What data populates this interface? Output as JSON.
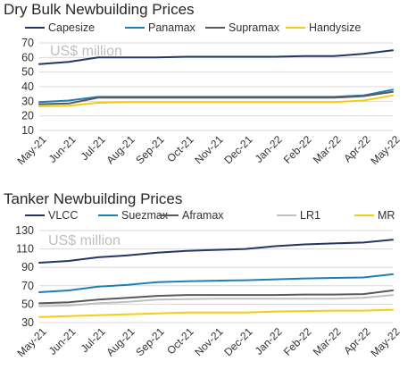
{
  "chart_data": [
    {
      "type": "line",
      "title": "Dry Bulk Newbuilding Prices",
      "annotation": "US$ million",
      "x": [
        "May-21",
        "Jun-21",
        "Jul-21",
        "Aug-21",
        "Sep-21",
        "Oct-21",
        "Nov-21",
        "Dec-21",
        "Jan-22",
        "Feb-22",
        "Mar-22",
        "Apr-22",
        "May-22"
      ],
      "ylim": [
        10,
        70
      ],
      "yticks": [
        10,
        20,
        30,
        40,
        50,
        60,
        70
      ],
      "grid": true,
      "legend_position": "top",
      "series": [
        {
          "name": "Capesize",
          "color": "#1f3864",
          "values": [
            55.5,
            57,
            60,
            60,
            60,
            60.5,
            60.5,
            60.5,
            60.5,
            61,
            61,
            62.5,
            65
          ]
        },
        {
          "name": "Panamax",
          "color": "#1f7fb5",
          "values": [
            29.5,
            30.5,
            33,
            33,
            33,
            33,
            33,
            33,
            33,
            33,
            33,
            34,
            38
          ]
        },
        {
          "name": "Supramax",
          "color": "#595959",
          "values": [
            28,
            28.5,
            32.5,
            32.5,
            32.5,
            32.5,
            32.5,
            32.5,
            32.5,
            32.5,
            32.5,
            33.5,
            36.5
          ]
        },
        {
          "name": "Handysize",
          "color": "#f5cc14",
          "values": [
            26.5,
            27,
            29,
            29.5,
            29.5,
            29.5,
            29.5,
            29.5,
            29.5,
            29.5,
            29.5,
            30.5,
            34
          ]
        }
      ]
    },
    {
      "type": "line",
      "title": "Tanker Newbuilding Prices",
      "annotation": "US$ million",
      "x": [
        "May-21",
        "Jun-21",
        "Jul-21",
        "Aug-21",
        "Sep-21",
        "Oct-21",
        "Nov-21",
        "Dec-21",
        "Jan-22",
        "Feb-22",
        "Mar-22",
        "Apr-22",
        "May-22"
      ],
      "ylim": [
        30,
        130
      ],
      "yticks": [
        30,
        50,
        70,
        90,
        110,
        130
      ],
      "grid": true,
      "legend_position": "top",
      "series": [
        {
          "name": "VLCC",
          "color": "#1f3864",
          "values": [
            95,
            97,
            101,
            103,
            106,
            108,
            109,
            110,
            113,
            115,
            116,
            117,
            120
          ]
        },
        {
          "name": "Suezmax",
          "color": "#1f7fb5",
          "values": [
            63,
            65,
            69,
            71,
            74,
            75,
            75.5,
            76,
            77,
            78,
            78.5,
            79,
            82.5
          ]
        },
        {
          "name": "Aframax",
          "color": "#595959",
          "values": [
            51,
            52,
            55,
            57,
            59,
            60,
            60,
            60,
            60,
            60.5,
            60.5,
            61,
            65
          ]
        },
        {
          "name": "LR1",
          "color": "#bfbfbf",
          "values": [
            48,
            48.5,
            51,
            52.5,
            55,
            55.5,
            56,
            56,
            56,
            56,
            56,
            57,
            60
          ]
        },
        {
          "name": "MR",
          "color": "#f5cc14",
          "values": [
            36,
            37,
            38,
            39,
            40,
            41,
            41,
            41,
            42,
            42.5,
            43,
            43,
            44
          ]
        }
      ]
    }
  ]
}
